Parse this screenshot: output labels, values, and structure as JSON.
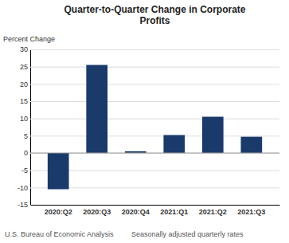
{
  "chart_data": {
    "type": "bar",
    "title": "Quarter-to-Quarter Change in Corporate\nProfits",
    "ylabel": "Percent Change",
    "annotations": [
      "U.S. Bureau of Economic Analysis",
      "Seasonally adjusted quarterly rates"
    ],
    "categories": [
      "2020:Q2",
      "2020:Q3",
      "2020:Q4",
      "2021:Q1",
      "2021:Q2",
      "2021:Q3"
    ],
    "values": [
      -10.5,
      25.5,
      0.5,
      5.2,
      10.5,
      4.7
    ],
    "color": "#1a3a6b",
    "ylim": [
      -15,
      30
    ],
    "yticks": [
      -15,
      -10,
      -5,
      0,
      5,
      10,
      15,
      20,
      25,
      30
    ],
    "grid": true
  }
}
